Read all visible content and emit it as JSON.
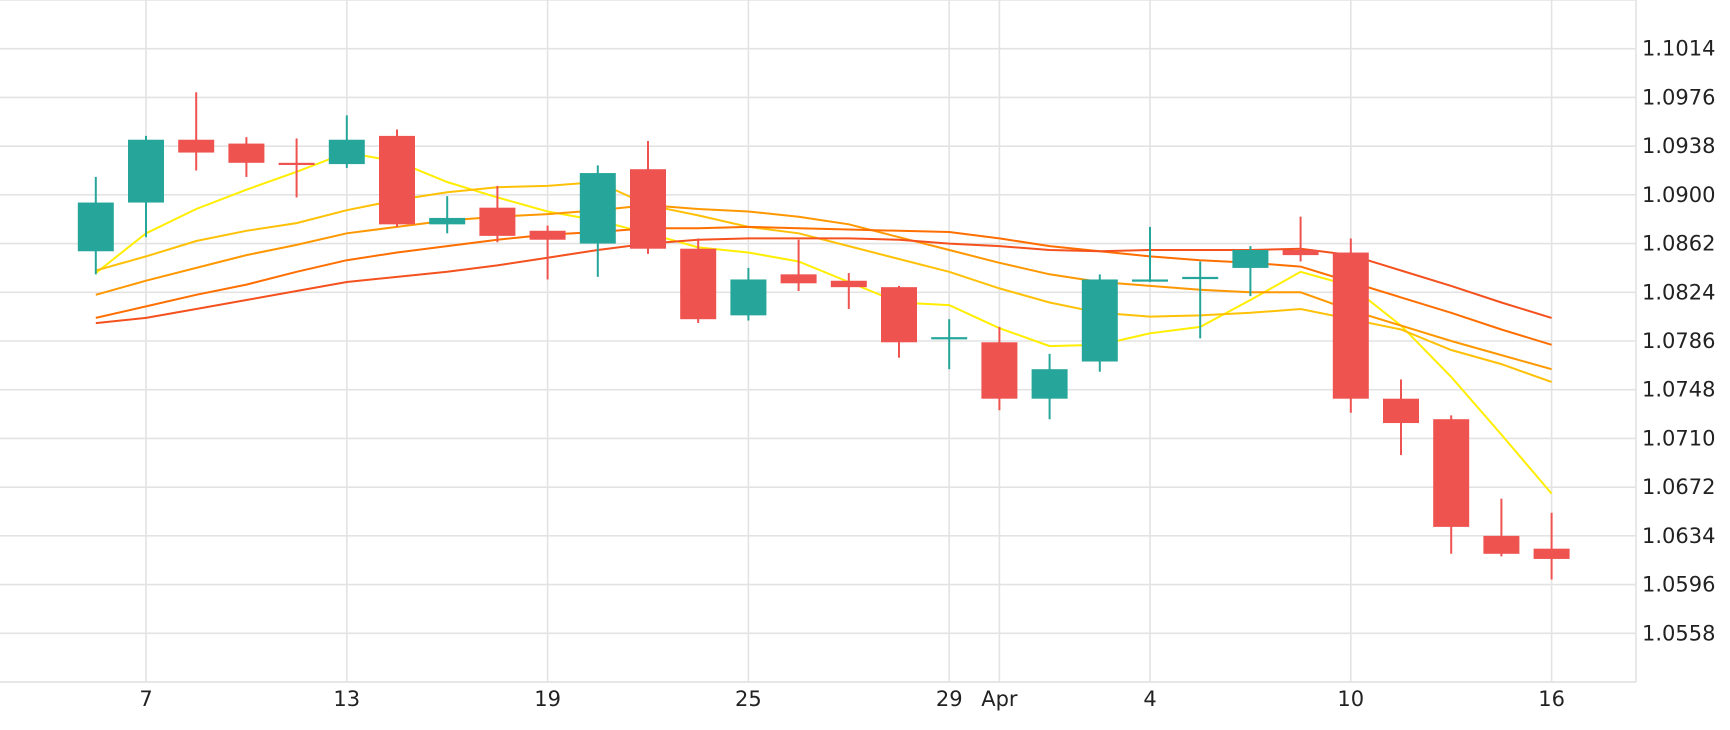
{
  "chart_data": {
    "type": "candlestick",
    "title": "",
    "xlabel": "",
    "ylabel": "",
    "grid": true,
    "legend": "none",
    "ylim": [
      1.052,
      1.1052
    ],
    "y_ticks": [
      "1.1014",
      "1.0976",
      "1.0938",
      "1.0900",
      "1.0862",
      "1.0824",
      "1.0786",
      "1.0748",
      "1.0710",
      "1.0672",
      "1.0634",
      "1.0596",
      "1.0558"
    ],
    "x_ticks": [
      {
        "day": 5,
        "label": "7"
      },
      {
        "day": 9,
        "label": "13"
      },
      {
        "day": 13,
        "label": "19"
      },
      {
        "day": 17,
        "label": "25"
      },
      {
        "day": 21,
        "label": "29"
      },
      {
        "day": 22,
        "label": "Apr"
      },
      {
        "day": 25,
        "label": "4"
      },
      {
        "day": 29,
        "label": "10"
      },
      {
        "day": 33,
        "label": "16"
      }
    ],
    "colors": {
      "up": "#26a69a",
      "down": "#ef5350",
      "grid": "#e3e3e3",
      "ma_colors": [
        "#ffee00",
        "#ffc107",
        "#ff9800",
        "#ff6f00",
        "#f4511e"
      ]
    },
    "candles": [
      {
        "day": 4,
        "open": 1.0856,
        "high": 1.0914,
        "low": 1.0838,
        "close": 1.0894
      },
      {
        "day": 5,
        "open": 1.0894,
        "high": 1.0946,
        "low": 1.0867,
        "close": 1.0943
      },
      {
        "day": 6,
        "open": 1.0943,
        "high": 1.098,
        "low": 1.0919,
        "close": 1.0933
      },
      {
        "day": 7,
        "open": 1.094,
        "high": 1.0945,
        "low": 1.0914,
        "close": 1.0925
      },
      {
        "day": 8,
        "open": 1.0925,
        "high": 1.0944,
        "low": 1.0898,
        "close": 1.0924
      },
      {
        "day": 9,
        "open": 1.0924,
        "high": 1.0962,
        "low": 1.0921,
        "close": 1.0943
      },
      {
        "day": 10,
        "open": 1.0946,
        "high": 1.0951,
        "low": 1.0875,
        "close": 1.0877
      },
      {
        "day": 11,
        "open": 1.0877,
        "high": 1.0899,
        "low": 1.087,
        "close": 1.0882
      },
      {
        "day": 12,
        "open": 1.089,
        "high": 1.0907,
        "low": 1.0863,
        "close": 1.0868
      },
      {
        "day": 13,
        "open": 1.0872,
        "high": 1.0876,
        "low": 1.0834,
        "close": 1.0865
      },
      {
        "day": 14,
        "open": 1.0862,
        "high": 1.0923,
        "low": 1.0836,
        "close": 1.0917
      },
      {
        "day": 15,
        "open": 1.092,
        "high": 1.0942,
        "low": 1.0854,
        "close": 1.0858
      },
      {
        "day": 16,
        "open": 1.0858,
        "high": 1.0866,
        "low": 1.08,
        "close": 1.0803
      },
      {
        "day": 17,
        "open": 1.0806,
        "high": 1.0843,
        "low": 1.0802,
        "close": 1.0834
      },
      {
        "day": 18,
        "open": 1.0838,
        "high": 1.0865,
        "low": 1.0825,
        "close": 1.0831
      },
      {
        "day": 19,
        "open": 1.0833,
        "high": 1.0839,
        "low": 1.0811,
        "close": 1.0828
      },
      {
        "day": 20,
        "open": 1.0828,
        "high": 1.0829,
        "low": 1.0773,
        "close": 1.0785
      },
      {
        "day": 21,
        "open": 1.0788,
        "high": 1.0803,
        "low": 1.0764,
        "close": 1.0789
      },
      {
        "day": 22,
        "open": 1.0785,
        "high": 1.0797,
        "low": 1.0732,
        "close": 1.0741
      },
      {
        "day": 23,
        "open": 1.0741,
        "high": 1.0776,
        "low": 1.0725,
        "close": 1.0764
      },
      {
        "day": 24,
        "open": 1.077,
        "high": 1.0838,
        "low": 1.0762,
        "close": 1.0834
      },
      {
        "day": 25,
        "open": 1.0833,
        "high": 1.0875,
        "low": 1.0832,
        "close": 1.0834
      },
      {
        "day": 26,
        "open": 1.0836,
        "high": 1.0848,
        "low": 1.0788,
        "close": 1.0836
      },
      {
        "day": 27,
        "open": 1.0843,
        "high": 1.086,
        "low": 1.0821,
        "close": 1.0857
      },
      {
        "day": 28,
        "open": 1.0857,
        "high": 1.0883,
        "low": 1.0848,
        "close": 1.0853
      },
      {
        "day": 29,
        "open": 1.0855,
        "high": 1.0866,
        "low": 1.073,
        "close": 1.0741
      },
      {
        "day": 30,
        "open": 1.0741,
        "high": 1.0756,
        "low": 1.0697,
        "close": 1.0722
      },
      {
        "day": 31,
        "open": 1.0725,
        "high": 1.0728,
        "low": 1.062,
        "close": 1.0641
      },
      {
        "day": 32,
        "open": 1.0634,
        "high": 1.0663,
        "low": 1.0618,
        "close": 1.062
      },
      {
        "day": 33,
        "open": 1.0624,
        "high": 1.0652,
        "low": 1.06,
        "close": 1.0616
      }
    ],
    "moving_averages": [
      {
        "color": "#ffee00",
        "points": [
          [
            4,
            1.0839
          ],
          [
            5,
            1.087
          ],
          [
            6,
            1.0889
          ],
          [
            7,
            1.0904
          ],
          [
            8,
            1.0918
          ],
          [
            9,
            1.0933
          ],
          [
            10,
            1.0926
          ],
          [
            11,
            1.091
          ],
          [
            12,
            1.0898
          ],
          [
            13,
            1.0887
          ],
          [
            14,
            1.088
          ],
          [
            15,
            1.087
          ],
          [
            16,
            1.0859
          ],
          [
            17,
            1.0855
          ],
          [
            18,
            1.0848
          ],
          [
            19,
            1.0832
          ],
          [
            20,
            1.0816
          ],
          [
            21,
            1.0814
          ],
          [
            22,
            1.0796
          ],
          [
            23,
            1.0782
          ],
          [
            24,
            1.0783
          ],
          [
            25,
            1.0792
          ],
          [
            26,
            1.0797
          ],
          [
            27,
            1.0818
          ],
          [
            28,
            1.084
          ],
          [
            29,
            1.0829
          ],
          [
            30,
            1.0798
          ],
          [
            31,
            1.0758
          ],
          [
            32,
            1.0713
          ],
          [
            33,
            1.0667
          ]
        ]
      },
      {
        "color": "#ffc107",
        "points": [
          [
            4,
            1.0841
          ],
          [
            5,
            1.0852
          ],
          [
            6,
            1.0864
          ],
          [
            7,
            1.0872
          ],
          [
            8,
            1.0878
          ],
          [
            9,
            1.0888
          ],
          [
            10,
            1.0896
          ],
          [
            11,
            1.0902
          ],
          [
            12,
            1.0906
          ],
          [
            13,
            1.0907
          ],
          [
            14,
            1.091
          ],
          [
            15,
            1.0892
          ],
          [
            16,
            1.0884
          ],
          [
            17,
            1.0875
          ],
          [
            18,
            1.087
          ],
          [
            19,
            1.086
          ],
          [
            20,
            1.085
          ],
          [
            21,
            1.084
          ],
          [
            22,
            1.0827
          ],
          [
            23,
            1.0816
          ],
          [
            24,
            1.0808
          ],
          [
            25,
            1.0805
          ],
          [
            26,
            1.0806
          ],
          [
            27,
            1.0808
          ],
          [
            28,
            1.0811
          ],
          [
            29,
            1.0803
          ],
          [
            30,
            1.0795
          ],
          [
            31,
            1.0779
          ],
          [
            32,
            1.0768
          ],
          [
            33,
            1.0754
          ]
        ]
      },
      {
        "color": "#ff9800",
        "points": [
          [
            4,
            1.0822
          ],
          [
            5,
            1.0833
          ],
          [
            6,
            1.0843
          ],
          [
            7,
            1.0853
          ],
          [
            8,
            1.0861
          ],
          [
            9,
            1.087
          ],
          [
            10,
            1.0875
          ],
          [
            11,
            1.088
          ],
          [
            12,
            1.0883
          ],
          [
            13,
            1.0885
          ],
          [
            14,
            1.0888
          ],
          [
            15,
            1.0892
          ],
          [
            16,
            1.0889
          ],
          [
            17,
            1.0887
          ],
          [
            18,
            1.0883
          ],
          [
            19,
            1.0877
          ],
          [
            20,
            1.0867
          ],
          [
            21,
            1.0857
          ],
          [
            22,
            1.0847
          ],
          [
            23,
            1.0838
          ],
          [
            24,
            1.0832
          ],
          [
            25,
            1.0829
          ],
          [
            26,
            1.0826
          ],
          [
            27,
            1.0824
          ],
          [
            28,
            1.0824
          ],
          [
            29,
            1.081
          ],
          [
            30,
            1.0798
          ],
          [
            31,
            1.0786
          ],
          [
            32,
            1.0775
          ],
          [
            33,
            1.0764
          ]
        ]
      },
      {
        "color": "#ff6f00",
        "points": [
          [
            4,
            1.0804
          ],
          [
            5,
            1.0813
          ],
          [
            6,
            1.0822
          ],
          [
            7,
            1.083
          ],
          [
            8,
            1.084
          ],
          [
            9,
            1.0849
          ],
          [
            10,
            1.0855
          ],
          [
            11,
            1.086
          ],
          [
            12,
            1.0865
          ],
          [
            13,
            1.0869
          ],
          [
            14,
            1.0871
          ],
          [
            15,
            1.0874
          ],
          [
            16,
            1.0874
          ],
          [
            17,
            1.0875
          ],
          [
            18,
            1.0874
          ],
          [
            19,
            1.0873
          ],
          [
            20,
            1.0872
          ],
          [
            21,
            1.0871
          ],
          [
            22,
            1.0866
          ],
          [
            23,
            1.086
          ],
          [
            24,
            1.0856
          ],
          [
            25,
            1.0852
          ],
          [
            26,
            1.0849
          ],
          [
            27,
            1.0847
          ],
          [
            28,
            1.0844
          ],
          [
            29,
            1.0832
          ],
          [
            30,
            1.082
          ],
          [
            31,
            1.0808
          ],
          [
            32,
            1.0795
          ],
          [
            33,
            1.0783
          ]
        ]
      },
      {
        "color": "#f4511e",
        "points": [
          [
            4,
            1.08
          ],
          [
            5,
            1.0804
          ],
          [
            6,
            1.0811
          ],
          [
            7,
            1.0818
          ],
          [
            8,
            1.0825
          ],
          [
            9,
            1.0832
          ],
          [
            10,
            1.0836
          ],
          [
            11,
            1.084
          ],
          [
            12,
            1.0845
          ],
          [
            13,
            1.0851
          ],
          [
            14,
            1.0857
          ],
          [
            15,
            1.0862
          ],
          [
            16,
            1.0865
          ],
          [
            17,
            1.0866
          ],
          [
            18,
            1.0866
          ],
          [
            19,
            1.0866
          ],
          [
            20,
            1.0865
          ],
          [
            21,
            1.0862
          ],
          [
            22,
            1.086
          ],
          [
            23,
            1.0857
          ],
          [
            24,
            1.0856
          ],
          [
            25,
            1.0857
          ],
          [
            26,
            1.0857
          ],
          [
            27,
            1.0857
          ],
          [
            28,
            1.0858
          ],
          [
            29,
            1.0853
          ],
          [
            30,
            1.0841
          ],
          [
            31,
            1.0829
          ],
          [
            32,
            1.0816
          ],
          [
            33,
            1.0804
          ]
        ]
      }
    ]
  }
}
